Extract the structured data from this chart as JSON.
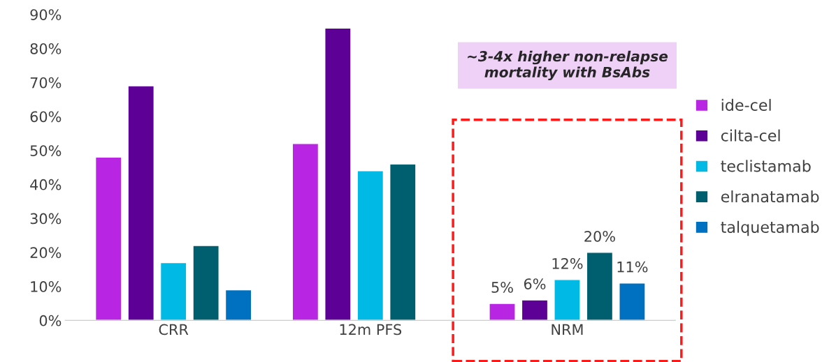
{
  "chart_data": {
    "type": "bar",
    "categories": [
      "CRR",
      "12m PFS",
      "NRM"
    ],
    "series": [
      {
        "name": "ide-cel",
        "color": "#b826e3",
        "values": [
          48,
          52,
          5
        ],
        "value_labels": [
          null,
          null,
          "5%"
        ]
      },
      {
        "name": "cilta-cel",
        "color": "#5c0096",
        "values": [
          69,
          86,
          6
        ],
        "value_labels": [
          null,
          null,
          "6%"
        ]
      },
      {
        "name": "teclistamab",
        "color": "#00b9e4",
        "values": [
          17,
          44,
          12
        ],
        "value_labels": [
          null,
          null,
          "12%"
        ]
      },
      {
        "name": "elranatamab",
        "color": "#005f6e",
        "values": [
          22,
          46,
          20
        ],
        "value_labels": [
          null,
          null,
          "20%"
        ]
      },
      {
        "name": "talquetamab",
        "color": "#0070c0",
        "values": [
          9,
          null,
          11
        ],
        "value_labels": [
          null,
          null,
          "11%"
        ]
      }
    ],
    "ylim": [
      0,
      90
    ],
    "yticks": [
      {
        "value": 0,
        "label": "0%"
      },
      {
        "value": 10,
        "label": "10%"
      },
      {
        "value": 20,
        "label": "20%"
      },
      {
        "value": 30,
        "label": "30%"
      },
      {
        "value": 40,
        "label": "40%"
      },
      {
        "value": 50,
        "label": "50%"
      },
      {
        "value": 60,
        "label": "60%"
      },
      {
        "value": 70,
        "label": "70%"
      },
      {
        "value": 80,
        "label": "80%"
      },
      {
        "value": 90,
        "label": "90%"
      }
    ],
    "annotations": [
      "~3-4x higher non-relapse mortality with BsAbs"
    ],
    "grid": false,
    "legend": "right"
  }
}
